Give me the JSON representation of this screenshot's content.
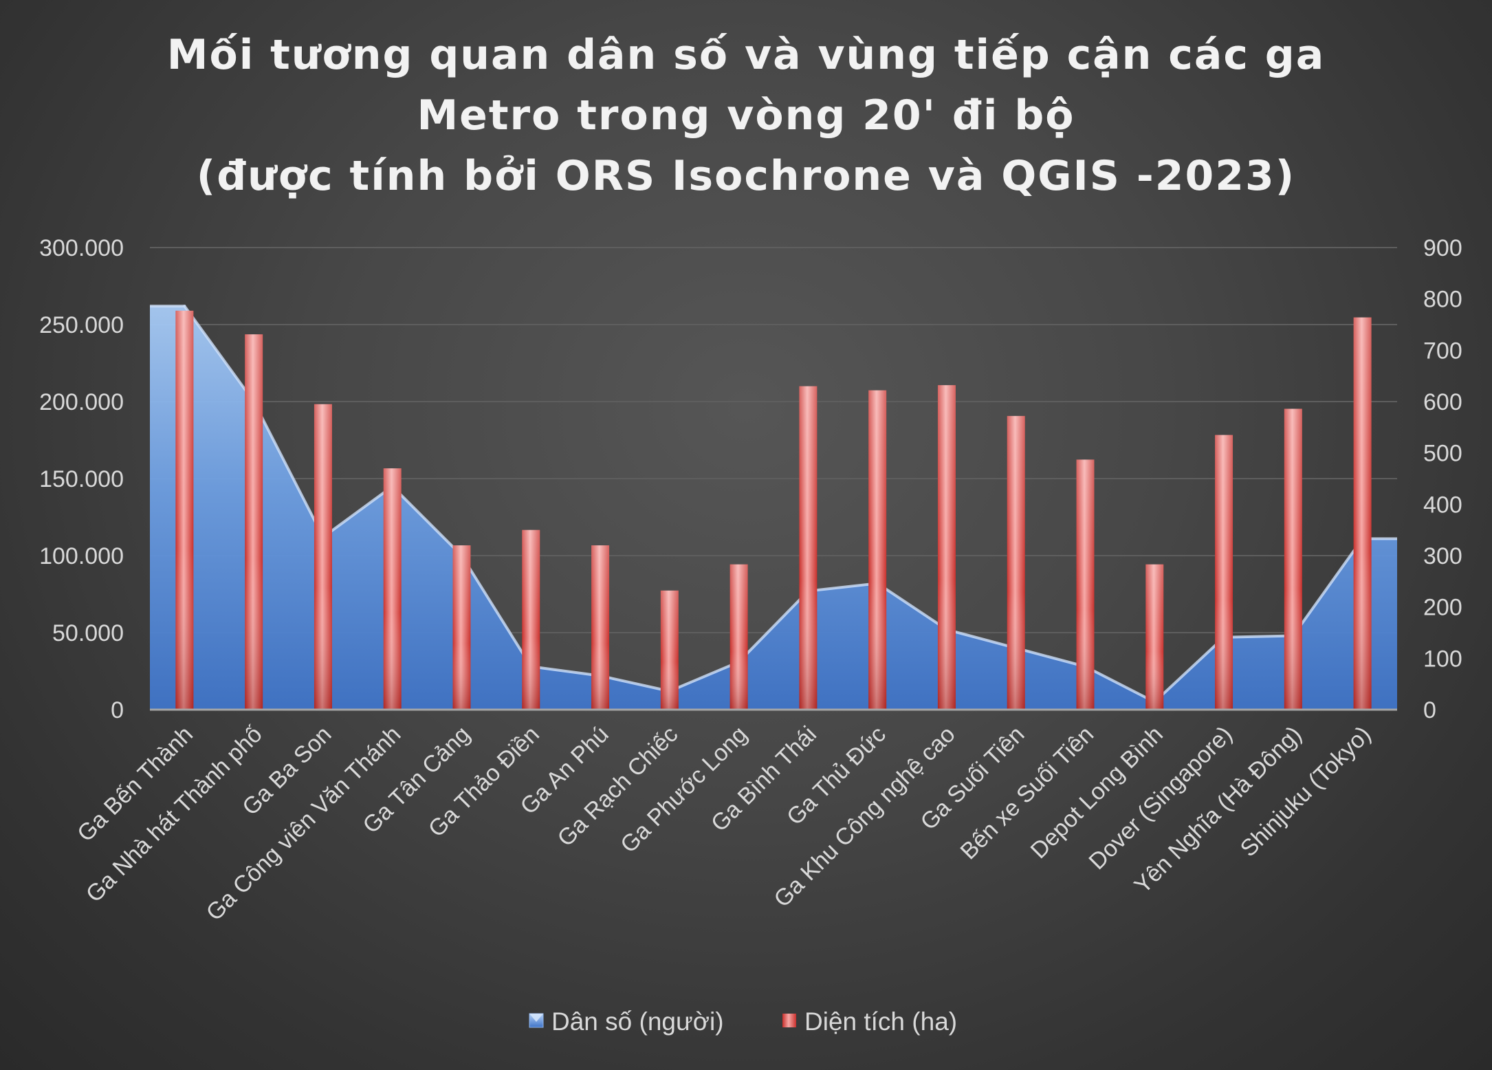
{
  "chart_data": {
    "type": "bar",
    "title_lines": [
      "Mối tương quan dân số và vùng tiếp cận các ga",
      "Metro  trong vòng 20' đi bộ",
      "(được tính bởi ORS Isochrone và QGIS -2023)"
    ],
    "categories": [
      "Ga Bến Thành",
      "Ga Nhà hát Thành phố",
      "Ga Ba Son",
      "Ga Công viên Văn Thánh",
      "Ga Tân Cảng",
      "Ga Thảo Điền",
      "Ga An Phú",
      "Ga Rạch Chiếc",
      "Ga Phước Long",
      "Ga Bình Thái",
      "Ga Thủ Đức",
      "Ga Khu Công nghệ cao",
      "Ga Suối Tiên",
      "Bến xe Suối Tiên",
      "Depot Long Bình",
      "Dover (Singapore)",
      "Yên Nghĩa (Hà Đông)",
      "Shinjuku (Tokyo)"
    ],
    "series": [
      {
        "name": "Dân số (người)",
        "type": "area",
        "axis": "left",
        "color": "#5b8fd8",
        "values": [
          262000,
          200000,
          112000,
          145000,
          100000,
          28000,
          22000,
          12000,
          31000,
          77000,
          82000,
          52000,
          40000,
          28000,
          5000,
          47000,
          48000,
          111000
        ]
      },
      {
        "name": "Diện tích (ha)",
        "type": "bar",
        "axis": "right",
        "color": "#d9534f",
        "values": [
          777,
          731,
          595,
          470,
          320,
          350,
          320,
          232,
          283,
          630,
          622,
          632,
          572,
          487,
          283,
          535,
          586,
          764
        ]
      }
    ],
    "y_left": {
      "min": 0,
      "max": 300000,
      "ticks": [
        0,
        50000,
        100000,
        150000,
        200000,
        250000,
        300000
      ],
      "tick_labels": [
        "0",
        "50.000",
        "100.000",
        "150.000",
        "200.000",
        "250.000",
        "300.000"
      ]
    },
    "y_right": {
      "min": 0,
      "max": 900,
      "ticks": [
        0,
        100,
        200,
        300,
        400,
        500,
        600,
        700,
        800,
        900
      ],
      "tick_labels": [
        "0",
        "100",
        "200",
        "300",
        "400",
        "500",
        "600",
        "700",
        "800",
        "900"
      ]
    },
    "grid": true,
    "legend_position": "bottom"
  }
}
